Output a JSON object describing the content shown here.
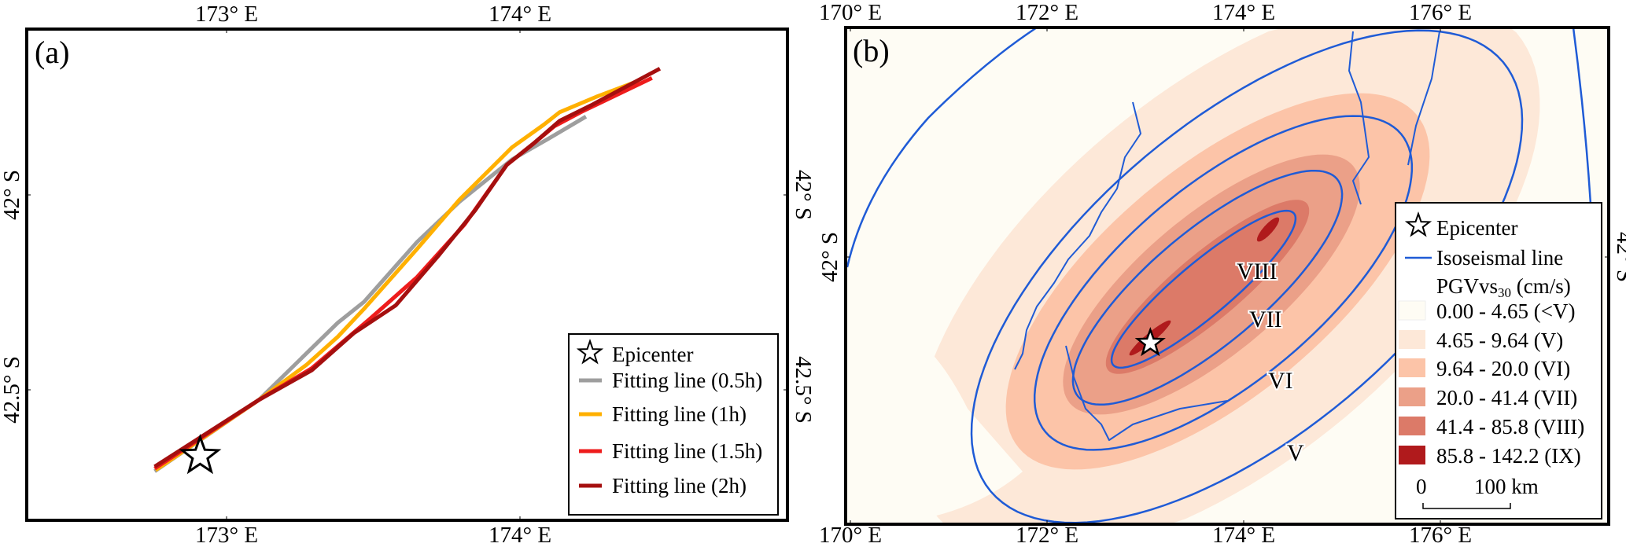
{
  "panel_a": {
    "label": "(a)",
    "x_ticks": [
      {
        "value": 173,
        "label": "173° E"
      },
      {
        "value": 174,
        "label": "174° E"
      }
    ],
    "y_ticks": [
      {
        "value": 42,
        "label": "42° S"
      },
      {
        "value": 42.5,
        "label": "42.5° S"
      }
    ],
    "epicenter": {
      "lon": 172.91,
      "lat": 42.67
    },
    "legend": {
      "epicenter": "Epicenter",
      "items": [
        {
          "label": "Fitting line (0.5h)",
          "color": "#9e9e9e"
        },
        {
          "label": "Fitting line (1h)",
          "color": "#ffb000"
        },
        {
          "label": "Fitting line (1.5h)",
          "color": "#ee1c1c"
        },
        {
          "label": "Fitting line (2h)",
          "color": "#a50f0f"
        }
      ]
    },
    "lines": [
      {
        "name": "Fitting line (0.5h)",
        "color": "#9e9e9e",
        "points": [
          [
            172.755,
            42.709
          ],
          [
            173.11,
            42.526
          ],
          [
            173.379,
            42.328
          ],
          [
            173.469,
            42.274
          ],
          [
            173.649,
            42.121
          ],
          [
            173.793,
            42.018
          ],
          [
            173.973,
            41.909
          ],
          [
            174.099,
            41.855
          ],
          [
            174.225,
            41.799
          ]
        ]
      },
      {
        "name": "Fitting line (1h)",
        "color": "#ffb000",
        "points": [
          [
            172.758,
            42.706
          ],
          [
            173.11,
            42.526
          ],
          [
            173.272,
            42.436
          ],
          [
            173.379,
            42.364
          ],
          [
            173.469,
            42.292
          ],
          [
            173.649,
            42.139
          ],
          [
            173.793,
            42.013
          ],
          [
            173.973,
            41.878
          ],
          [
            174.081,
            41.82
          ],
          [
            174.135,
            41.788
          ],
          [
            174.261,
            41.748
          ],
          [
            174.405,
            41.707
          ]
        ]
      },
      {
        "name": "Fitting line (1.5h)",
        "color": "#ee1c1c",
        "points": [
          [
            172.755,
            42.702
          ],
          [
            173.11,
            42.526
          ],
          [
            173.29,
            42.445
          ],
          [
            173.487,
            42.319
          ],
          [
            173.649,
            42.211
          ],
          [
            173.811,
            42.076
          ],
          [
            173.955,
            41.923
          ],
          [
            174.045,
            41.869
          ],
          [
            174.117,
            41.824
          ],
          [
            174.207,
            41.788
          ],
          [
            174.45,
            41.7
          ]
        ]
      },
      {
        "name": "Fitting line (2h)",
        "color": "#a50f0f",
        "points": [
          [
            172.755,
            42.697
          ],
          [
            173.11,
            42.526
          ],
          [
            173.29,
            42.45
          ],
          [
            173.433,
            42.355
          ],
          [
            173.577,
            42.283
          ],
          [
            173.721,
            42.157
          ],
          [
            173.847,
            42.04
          ],
          [
            173.955,
            41.923
          ],
          [
            174.045,
            41.869
          ],
          [
            174.135,
            41.81
          ],
          [
            174.243,
            41.77
          ],
          [
            174.477,
            41.676
          ]
        ]
      }
    ]
  },
  "panel_b": {
    "label": "(b)",
    "x_ticks": [
      {
        "value": 170,
        "label": "170° E"
      },
      {
        "value": 172,
        "label": "172° E"
      },
      {
        "value": 174,
        "label": "174° E"
      },
      {
        "value": 176,
        "label": "176° E"
      }
    ],
    "y_ticks": [
      {
        "value": 42,
        "label": "42° S"
      }
    ],
    "epicenter": {
      "lon": 173.05,
      "lat": 42.66
    },
    "isoseismal_labels": [
      "VIII",
      "VII",
      "VI",
      "V"
    ],
    "isoseismal_color": "#1f5bd6",
    "legend": {
      "epicenter": "Epicenter",
      "isoseismal": "Isoseismal line",
      "pgv_title": "PGVvs",
      "pgv_sub": "30",
      "pgv_unit": " (cm/s)",
      "classes": [
        {
          "label": "0.00 - 4.65 (<V)",
          "color": "#fefcf4"
        },
        {
          "label": "4.65 - 9.64 (V)",
          "color": "#fde8d8"
        },
        {
          "label": "9.64 - 20.0 (VI)",
          "color": "#fcc4a8"
        },
        {
          "label": "20.0 - 41.4 (VII)",
          "color": "#eba088"
        },
        {
          "label": "41.4 - 85.8 (VIII)",
          "color": "#dc7a68"
        },
        {
          "label": "85.8 - 142.2 (IX)",
          "color": "#b01a1c"
        }
      ],
      "scale_start": "0",
      "scale_end": "100 km"
    }
  }
}
